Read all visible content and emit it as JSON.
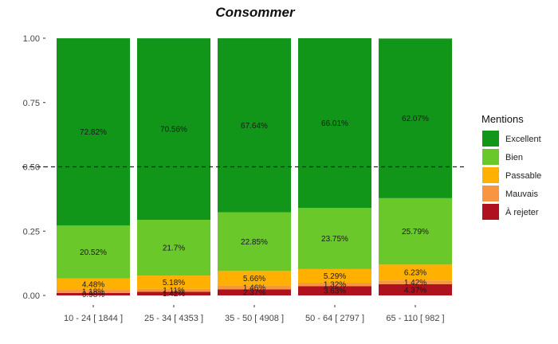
{
  "chart_data": {
    "type": "bar",
    "stacked": true,
    "title": "Consommer",
    "categories": [
      "10 - 24 [ 1844 ]",
      "25 - 34 [ 4353 ]",
      "35 - 50 [ 4908 ]",
      "50 - 64 [ 2797 ]",
      "65 - 110 [ 982 ]"
    ],
    "y_ticks": [
      "0.00",
      "0.25",
      "0.50",
      "0.75",
      "1.00"
    ],
    "ylim": [
      0,
      1
    ],
    "reference_line": 0.5,
    "legend_title": "Mentions",
    "legend_position": "right",
    "series": [
      {
        "name": "À rejeter",
        "color": "#b0111f",
        "values": [
          0.0098,
          0.0142,
          0.0237,
          0.0363,
          0.0437
        ],
        "labels": [
          "0.98%",
          "1.42%",
          "2.37%",
          "3.63%",
          "4.37%"
        ]
      },
      {
        "name": "Mauvais",
        "color": "#f79540",
        "values": [
          0.0118,
          0.0111,
          0.0146,
          0.0132,
          0.0142
        ],
        "labels": [
          "1.18%",
          "1.11%",
          "1.46%",
          "1.32%",
          "1.42%"
        ]
      },
      {
        "name": "Passable",
        "color": "#ffb000",
        "values": [
          0.0448,
          0.0518,
          0.0566,
          0.0529,
          0.0623
        ],
        "labels": [
          "4.48%",
          "5.18%",
          "5.66%",
          "5.29%",
          "6.23%"
        ]
      },
      {
        "name": "Bien",
        "color": "#6ac82a",
        "values": [
          0.2052,
          0.217,
          0.2285,
          0.2375,
          0.2579
        ],
        "labels": [
          "20.52%",
          "21.7%",
          "22.85%",
          "23.75%",
          "25.79%"
        ]
      },
      {
        "name": "Excellent",
        "color": "#12961a",
        "values": [
          0.7282,
          0.7056,
          0.6764,
          0.6601,
          0.6207
        ],
        "labels": [
          "72.82%",
          "70.56%",
          "67.64%",
          "66.01%",
          "62.07%"
        ]
      }
    ],
    "legend_order": [
      "Excellent",
      "Bien",
      "Passable",
      "Mauvais",
      "À rejeter"
    ]
  }
}
